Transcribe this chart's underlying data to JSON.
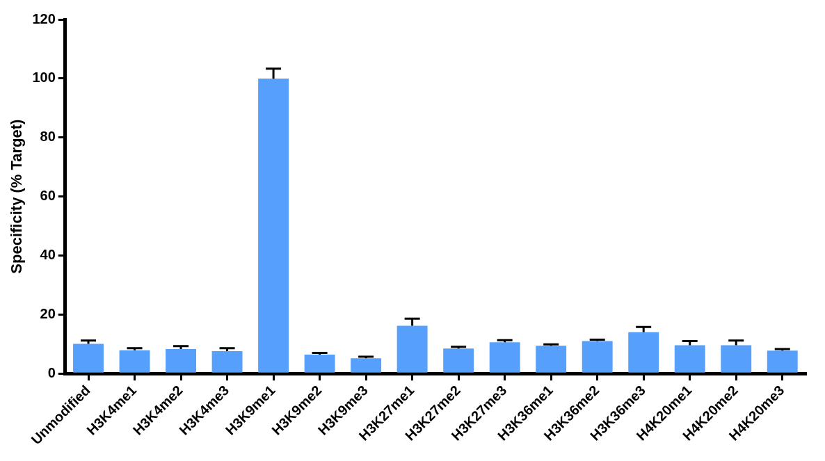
{
  "chart_data": {
    "type": "bar",
    "ylabel": "Specificity (% Target)",
    "categories": [
      "Unmodified",
      "H3K4me1",
      "H3K4me2",
      "H3K4me3",
      "H3K9me1",
      "H3K9me2",
      "H3K9me3",
      "H3K27me1",
      "H3K27me2",
      "H3K27me3",
      "H3K36me1",
      "H3K36me2",
      "H3K36me3",
      "H4K20me1",
      "H4K20me2",
      "H4K20me3"
    ],
    "values": [
      10.1,
      7.9,
      8.3,
      7.6,
      100,
      6.4,
      5.2,
      16.2,
      8.5,
      10.6,
      9.4,
      11.0,
      14.0,
      9.6,
      9.6,
      7.8
    ],
    "errors": [
      1.1,
      0.7,
      1.0,
      1.0,
      3.3,
      0.6,
      0.5,
      2.4,
      0.6,
      0.7,
      0.5,
      0.5,
      1.8,
      1.4,
      1.6,
      0.5
    ],
    "color": "#56a0fb",
    "ylim": [
      0,
      120
    ],
    "yticks": [
      0,
      20,
      40,
      60,
      80,
      100,
      120
    ],
    "grid": false,
    "legend": false
  }
}
